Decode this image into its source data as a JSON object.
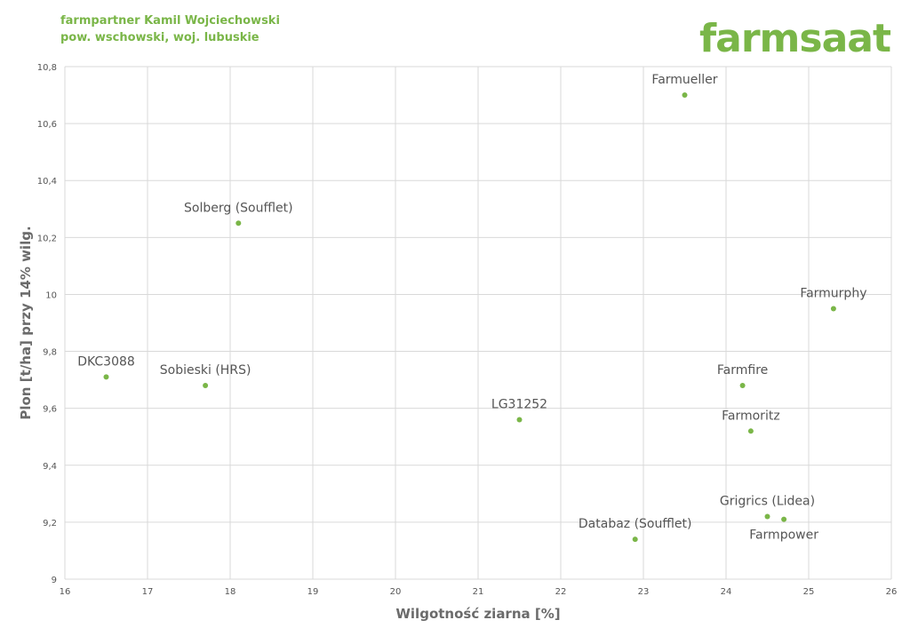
{
  "header": {
    "line1": "farmpartner Kamil Wojciechowski",
    "line2": "pow. wschowski, woj. lubuskie",
    "logo": "farmsaat"
  },
  "colors": {
    "accent": "#7ab648",
    "grid": "#d9d9d9",
    "text": "#555555"
  },
  "chart_data": {
    "type": "scatter",
    "xlabel": "Wilgotność ziarna [%]",
    "ylabel": "Plon [t/ha] przy 14% wilg.",
    "xlim": [
      16,
      26
    ],
    "ylim": [
      9,
      10.8
    ],
    "xticks": [
      "16",
      "17",
      "18",
      "19",
      "20",
      "21",
      "22",
      "23",
      "24",
      "25",
      "26"
    ],
    "xtick_values": [
      16,
      17,
      18,
      19,
      20,
      21,
      22,
      23,
      24,
      25,
      26
    ],
    "yticks": [
      "9",
      "9,2",
      "9,4",
      "9,6",
      "9,8",
      "10",
      "10,2",
      "10,4",
      "10,6",
      "10,8"
    ],
    "ytick_values": [
      9,
      9.2,
      9.4,
      9.6,
      9.8,
      10,
      10.2,
      10.4,
      10.6,
      10.8
    ],
    "grid": true,
    "points": [
      {
        "label": "Farmueller",
        "x": 23.5,
        "y": 10.7,
        "pos": "above"
      },
      {
        "label": "Solberg (Soufflet)",
        "x": 18.1,
        "y": 10.25,
        "pos": "above"
      },
      {
        "label": "Farmurphy",
        "x": 25.3,
        "y": 9.95,
        "pos": "above"
      },
      {
        "label": "DKC3088",
        "x": 16.5,
        "y": 9.71,
        "pos": "above"
      },
      {
        "label": "Sobieski (HRS)",
        "x": 17.7,
        "y": 9.68,
        "pos": "above"
      },
      {
        "label": "Farmfire",
        "x": 24.2,
        "y": 9.68,
        "pos": "above"
      },
      {
        "label": "LG31252",
        "x": 21.5,
        "y": 9.56,
        "pos": "above"
      },
      {
        "label": "Farmoritz",
        "x": 24.3,
        "y": 9.52,
        "pos": "above"
      },
      {
        "label": "Grigrics (Lidea)",
        "x": 24.5,
        "y": 9.22,
        "pos": "above"
      },
      {
        "label": "Farmpower",
        "x": 24.7,
        "y": 9.21,
        "pos": "below"
      },
      {
        "label": "Databaz (Soufflet)",
        "x": 22.9,
        "y": 9.14,
        "pos": "above"
      }
    ]
  }
}
